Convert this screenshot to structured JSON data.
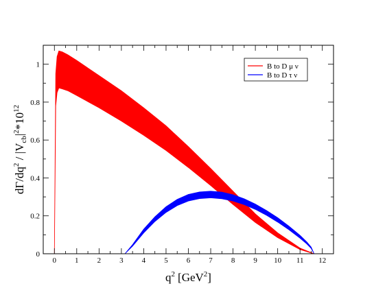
{
  "chart_data": {
    "type": "area",
    "xlabel": "q",
    "xlabel_sup": "2",
    "xlabel_unit": "[GeV",
    "xlabel_unit_sup": "2",
    "xlabel_unit_close": "]",
    "ylabel_parts": {
      "a": "dΓ/dq",
      "a_sup": "2",
      "b": " / |V",
      "b_sub": "cb",
      "c": "|",
      "c_sup": "2",
      "d": "*10",
      "d_sup": "12"
    },
    "xlim": [
      -0.5,
      12.5
    ],
    "ylim": [
      0,
      1.1
    ],
    "x_ticks": [
      0,
      1,
      2,
      3,
      4,
      5,
      6,
      7,
      8,
      9,
      10,
      11,
      12
    ],
    "x_tick_labels": [
      "0",
      "1",
      "2",
      "3",
      "4",
      "5",
      "6",
      "7",
      "8",
      "9",
      "10",
      "11",
      "12"
    ],
    "y_ticks": [
      0,
      0.2,
      0.4,
      0.6,
      0.8,
      1.0
    ],
    "y_tick_labels": [
      "0",
      "0.2",
      "0.4",
      "0.6",
      "0.8",
      "1"
    ],
    "legend_position": "top-right",
    "series": [
      {
        "name": "B to D μ ν",
        "color": "#ff0000",
        "band": {
          "x": [
            0.0,
            0.06,
            0.12,
            0.2,
            0.35,
            0.6,
            1.0,
            2.0,
            3.0,
            4.0,
            5.0,
            6.0,
            7.0,
            8.0,
            9.0,
            10.0,
            11.0,
            11.5,
            11.63
          ],
          "upper": [
            0.0,
            0.95,
            1.04,
            1.07,
            1.065,
            1.05,
            1.02,
            0.94,
            0.86,
            0.77,
            0.675,
            0.565,
            0.45,
            0.33,
            0.21,
            0.11,
            0.03,
            0.006,
            0.0
          ],
          "lower": [
            0.0,
            0.78,
            0.85,
            0.875,
            0.87,
            0.86,
            0.835,
            0.77,
            0.7,
            0.625,
            0.545,
            0.455,
            0.36,
            0.26,
            0.165,
            0.085,
            0.022,
            0.004,
            0.0
          ]
        }
      },
      {
        "name": "B to D τ ν",
        "color": "#0000ff",
        "band": {
          "x": [
            3.16,
            3.5,
            4.0,
            4.5,
            5.0,
            5.5,
            6.0,
            6.5,
            7.0,
            7.5,
            8.0,
            8.5,
            9.0,
            9.5,
            10.0,
            10.5,
            11.0,
            11.3,
            11.5,
            11.63
          ],
          "upper": [
            0.0,
            0.048,
            0.13,
            0.195,
            0.248,
            0.287,
            0.313,
            0.326,
            0.33,
            0.325,
            0.311,
            0.29,
            0.262,
            0.228,
            0.19,
            0.146,
            0.097,
            0.063,
            0.035,
            0.0
          ],
          "lower": [
            0.0,
            0.04,
            0.11,
            0.17,
            0.218,
            0.254,
            0.278,
            0.291,
            0.295,
            0.29,
            0.278,
            0.259,
            0.234,
            0.203,
            0.167,
            0.127,
            0.082,
            0.052,
            0.028,
            0.0
          ]
        }
      }
    ]
  }
}
